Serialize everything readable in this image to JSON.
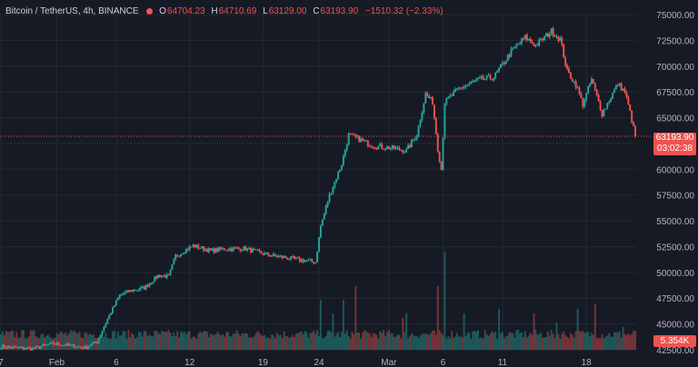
{
  "colors": {
    "background": "#161a25",
    "up": "#26a69a",
    "down": "#ef5350",
    "grid": "#242833",
    "axis_text": "#b2b5be"
  },
  "legend": {
    "symbol": "Bitcoin / TetherUS, 4h, BINANCE",
    "open_label": "O",
    "open": "64704.23",
    "high_label": "H",
    "high": "64710.69",
    "low_label": "L",
    "low": "63129.00",
    "close_label": "C",
    "close": "63193.90",
    "change": "−1510.32 (−2.33%)",
    "status_dot": "red-dot-icon"
  },
  "price_tag": {
    "value": "63193.90",
    "countdown": "03:02:38"
  },
  "volume_tag": {
    "value": "5.354K"
  },
  "chart_data": {
    "type": "candlestick",
    "series": [
      {
        "name": "Bitcoin / TetherUS, 4h, BINANCE"
      }
    ],
    "y_axis": {
      "side": "right",
      "ticks": [
        "75000.00",
        "72500.00",
        "70000.00",
        "67500.00",
        "65000.00",
        "62500.00",
        "60000.00",
        "57500.00",
        "55000.00",
        "52500.00",
        "50000.00",
        "47500.00",
        "45000.00",
        "42500.00"
      ],
      "ylim": [
        42500,
        75000
      ]
    },
    "x_axis": {
      "ticks": [
        "7",
        "Feb",
        "6",
        "12",
        "19",
        "24",
        "Mar",
        "6",
        "11",
        "18"
      ]
    },
    "last_price": 63193.9,
    "price_path_anchors": [
      [
        0,
        42800
      ],
      [
        18,
        42600
      ],
      [
        30,
        43100
      ],
      [
        40,
        42900
      ],
      [
        48,
        42700
      ],
      [
        55,
        43300
      ],
      [
        62,
        45800
      ],
      [
        68,
        47800
      ],
      [
        74,
        48200
      ],
      [
        82,
        48500
      ],
      [
        90,
        49700
      ],
      [
        96,
        49600
      ],
      [
        100,
        51600
      ],
      [
        110,
        52600
      ],
      [
        120,
        52100
      ],
      [
        130,
        52300
      ],
      [
        140,
        52300
      ],
      [
        150,
        51800
      ],
      [
        160,
        51500
      ],
      [
        175,
        51100
      ],
      [
        180,
        51000
      ],
      [
        183,
        54500
      ],
      [
        188,
        57500
      ],
      [
        195,
        60500
      ],
      [
        199,
        63300
      ],
      [
        204,
        63000
      ],
      [
        212,
        62300
      ],
      [
        222,
        62100
      ],
      [
        232,
        61800
      ],
      [
        238,
        63400
      ],
      [
        243,
        67300
      ],
      [
        247,
        66500
      ],
      [
        250,
        62000
      ],
      [
        252,
        60000
      ],
      [
        254,
        66500
      ],
      [
        262,
        67800
      ],
      [
        272,
        68600
      ],
      [
        282,
        68900
      ],
      [
        292,
        71400
      ],
      [
        300,
        72800
      ],
      [
        306,
        72000
      ],
      [
        315,
        73400
      ],
      [
        320,
        72600
      ],
      [
        324,
        69500
      ],
      [
        329,
        68200
      ],
      [
        333,
        66300
      ],
      [
        338,
        68700
      ],
      [
        344,
        65400
      ],
      [
        349,
        67000
      ],
      [
        353,
        68300
      ],
      [
        357,
        67500
      ],
      [
        360,
        65500
      ],
      [
        363,
        63194
      ]
    ],
    "bar_count": 364,
    "volume": {
      "baseline": "bottom",
      "notable_spikes": [
        [
          183,
          55
        ],
        [
          190,
          40
        ],
        [
          196,
          55
        ],
        [
          203,
          70
        ],
        [
          230,
          35
        ],
        [
          232,
          40
        ],
        [
          250,
          70
        ],
        [
          254,
          108
        ],
        [
          265,
          40
        ],
        [
          285,
          45
        ],
        [
          305,
          40
        ],
        [
          318,
          30
        ],
        [
          330,
          45
        ],
        [
          340,
          50
        ],
        [
          356,
          25
        ]
      ],
      "base_level": 12,
      "noise": 10
    }
  }
}
